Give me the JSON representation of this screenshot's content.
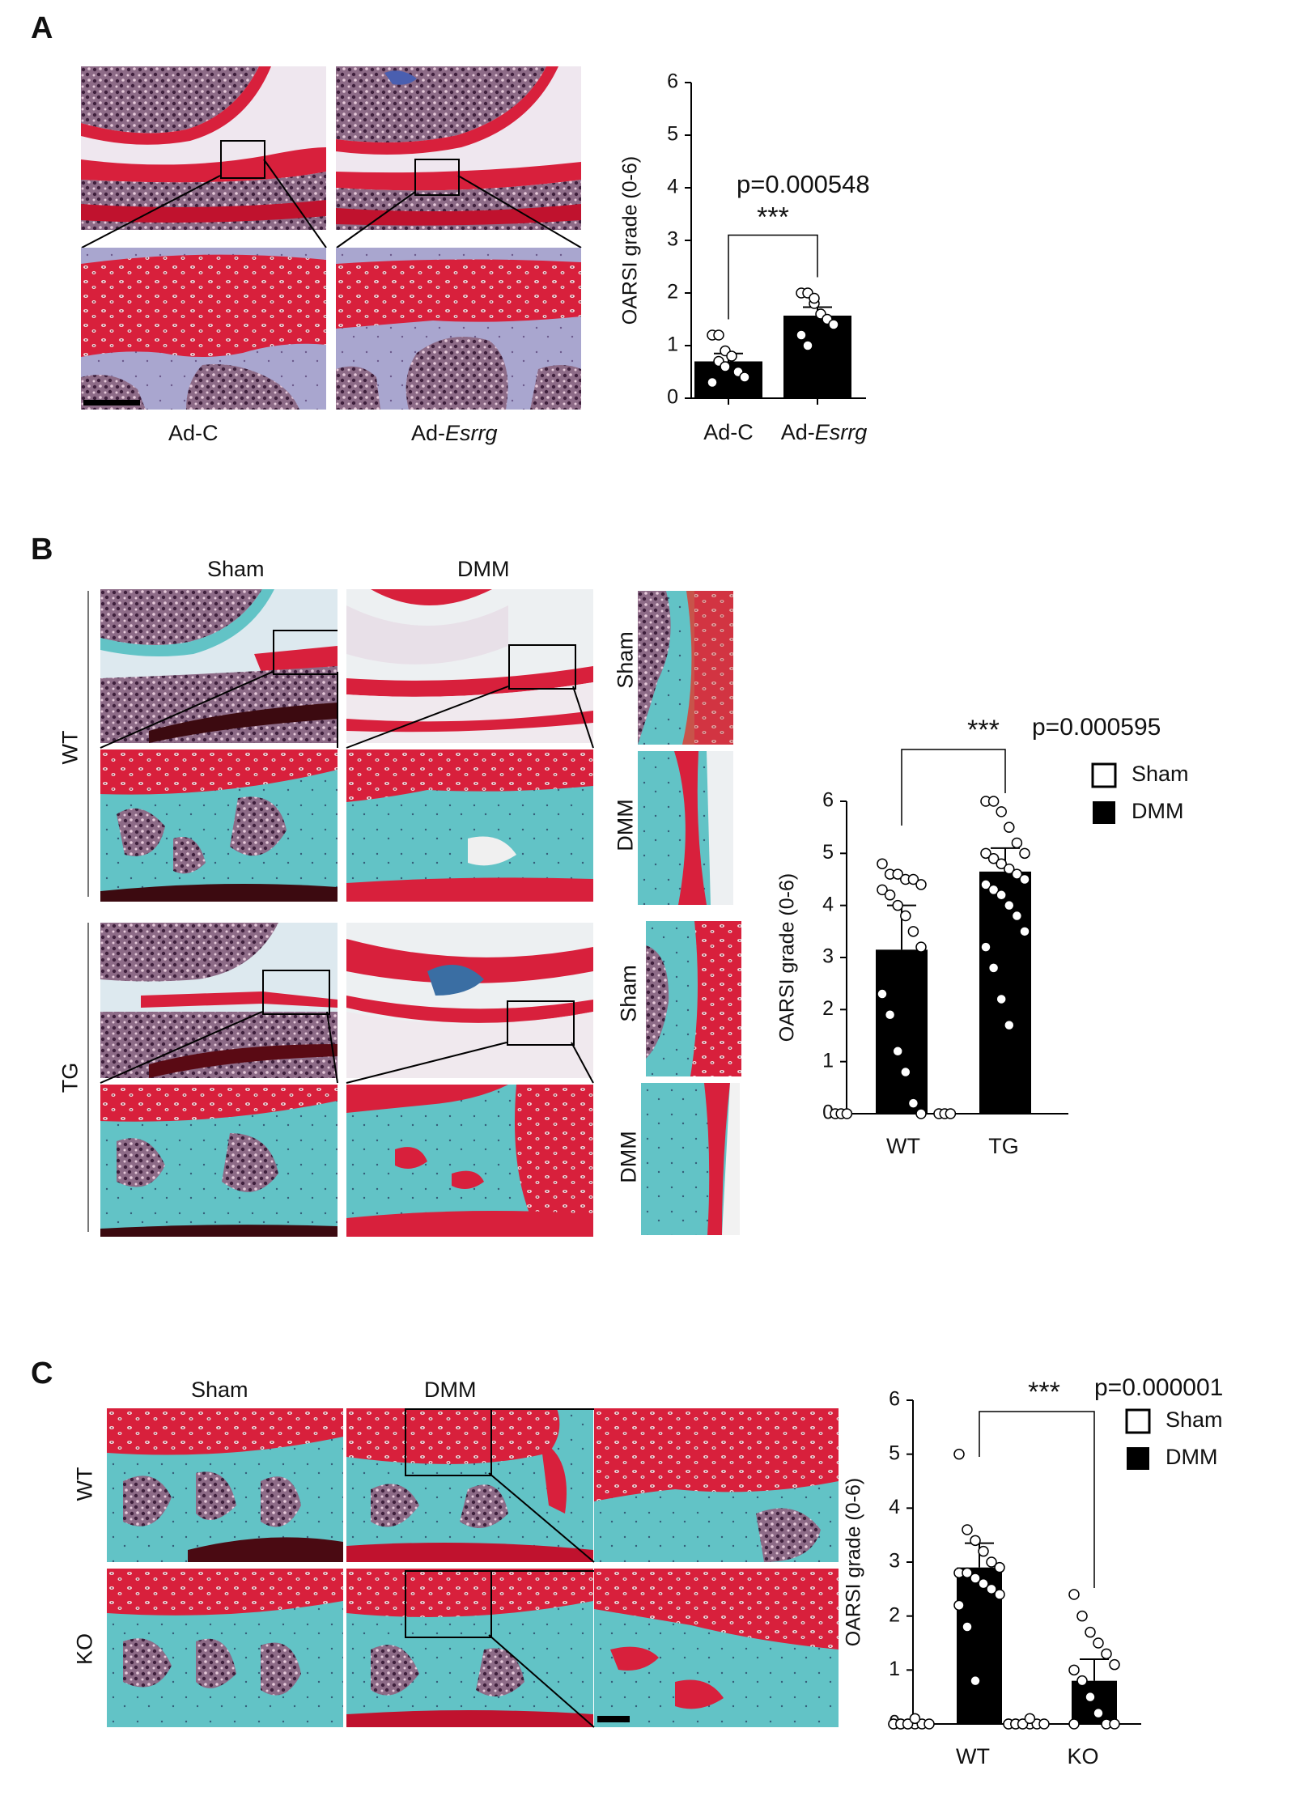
{
  "panels": {
    "A": {
      "letter": "A",
      "labels": {
        "left": "Ad-C",
        "right_prefix": "Ad-",
        "right_italic": "Esrrg"
      }
    },
    "B": {
      "letter": "B",
      "col_labels": [
        "Sham",
        "DMM"
      ],
      "row_labels": [
        "WT",
        "TG"
      ],
      "side_labels": [
        "Sham",
        "DMM",
        "Sham",
        "DMM"
      ]
    },
    "C": {
      "letter": "C",
      "col_labels": [
        "Sham",
        "DMM"
      ],
      "row_labels": [
        "WT",
        "KO"
      ]
    }
  },
  "colors": {
    "safranin": "#d8203c",
    "fast_green": "#5fc1c4",
    "marrow": "#5a3555",
    "bar": "#000000"
  },
  "chart_data": [
    {
      "id": "chartA",
      "type": "bar",
      "ylabel": "OARSI grade (0-6)",
      "ylim": [
        0,
        6
      ],
      "yticks": [
        0,
        1,
        2,
        3,
        4,
        5,
        6
      ],
      "categories": [
        "Ad-C",
        "Ad-Esrrg"
      ],
      "category_display": [
        {
          "prefix": "Ad-C",
          "italic": ""
        },
        {
          "prefix": "Ad-",
          "italic": "Esrrg"
        }
      ],
      "values": [
        0.7,
        1.57
      ],
      "errors": [
        0.15,
        0.16
      ],
      "points": [
        [
          1.2,
          1.2,
          0.9,
          0.8,
          0.5,
          0.4,
          0.3,
          0.7,
          0.6
        ],
        [
          2.0,
          2.0,
          1.8,
          1.6,
          1.5,
          1.4,
          1.2,
          1.0,
          1.9
        ]
      ],
      "significance": "***",
      "p_value": "p=0.000548"
    },
    {
      "id": "chartB",
      "type": "bar",
      "ylabel": "OARSI grade (0-6)",
      "ylim": [
        0,
        6
      ],
      "yticks": [
        0,
        1,
        2,
        3,
        4,
        5,
        6
      ],
      "groups": [
        "WT",
        "TG"
      ],
      "series": [
        {
          "name": "Sham",
          "values": [
            0,
            0
          ],
          "errors": [
            0,
            0
          ],
          "points": [
            [
              0,
              0,
              0
            ],
            [
              0,
              0,
              0
            ]
          ]
        },
        {
          "name": "DMM",
          "values": [
            3.15,
            4.65
          ],
          "errors": [
            0.85,
            0.45
          ],
          "points": [
            [
              4.8,
              4.6,
              4.6,
              4.5,
              4.5,
              4.4,
              4.3,
              4.2,
              4.0,
              3.8,
              3.5,
              3.2,
              2.3,
              1.9,
              1.2,
              0.8,
              0.2,
              0.0
            ],
            [
              6.0,
              6.0,
              5.8,
              5.5,
              5.2,
              5.0,
              5.0,
              4.9,
              4.8,
              4.7,
              4.6,
              4.5,
              4.4,
              4.3,
              4.2,
              4.0,
              3.8,
              3.5,
              3.2,
              2.8,
              2.2,
              1.7
            ]
          ]
        }
      ],
      "legend": [
        "Sham",
        "DMM"
      ],
      "significance": "***",
      "p_value": "p=0.000595"
    },
    {
      "id": "chartC",
      "type": "bar",
      "ylabel": "OARSI grade (0-6)",
      "ylim": [
        0,
        6
      ],
      "yticks": [
        0,
        1,
        2,
        3,
        4,
        5,
        6
      ],
      "groups": [
        "WT",
        "KO"
      ],
      "series": [
        {
          "name": "Sham",
          "values": [
            0,
            0
          ],
          "errors": [
            0,
            0
          ],
          "points": [
            [
              0,
              0,
              0,
              0,
              0,
              0,
              0,
              0,
              0,
              0.1
            ],
            [
              0,
              0,
              0,
              0,
              0,
              0,
              0,
              0,
              0,
              0.1
            ]
          ]
        },
        {
          "name": "DMM",
          "values": [
            2.9,
            0.8
          ],
          "errors": [
            0.45,
            0.4
          ],
          "points": [
            [
              5.0,
              3.6,
              3.4,
              3.2,
              3.0,
              2.9,
              2.8,
              2.8,
              2.7,
              2.6,
              2.5,
              2.4,
              2.2,
              1.8,
              0.8
            ],
            [
              2.4,
              2.0,
              1.7,
              1.5,
              1.3,
              1.1,
              1.0,
              0.8,
              0.5,
              0.2,
              0.0,
              0.0,
              0.0
            ]
          ]
        }
      ],
      "legend": [
        "Sham",
        "DMM"
      ],
      "significance": "***",
      "p_value": "p=0.000001"
    }
  ]
}
